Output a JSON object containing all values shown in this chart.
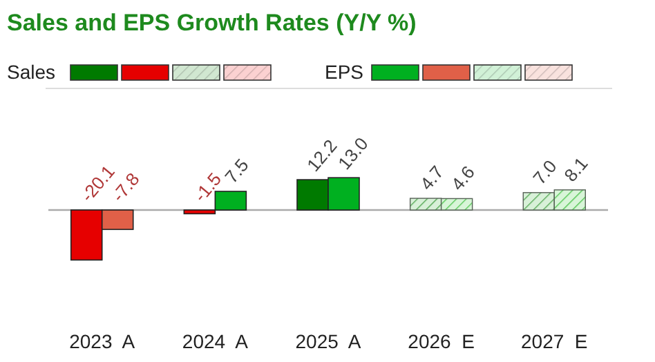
{
  "chart_data": {
    "type": "bar",
    "title": "Sales and EPS Growth Rates (Y/Y %)",
    "categories": [
      "2023  A",
      "2024  A",
      "2025  A",
      "2026  E",
      "2027  E"
    ],
    "series": [
      {
        "name": "Sales",
        "color": "#007a00",
        "colors": [
          "#e60000",
          "#e60000",
          "#007a00",
          "#d8f0d8",
          "#d8f0d8"
        ],
        "values": [
          -20.1,
          -1.5,
          12.2,
          4.7,
          7.0
        ],
        "value_labels": [
          "-20.1",
          "-1.5",
          "12.2",
          "4.7",
          "7.0"
        ]
      },
      {
        "name": "EPS",
        "color": "#00a800",
        "colors": [
          "#e06048",
          "#00b020",
          "#00b020",
          "#d8f5d8",
          "#d8f5d8"
        ],
        "values": [
          -7.8,
          7.5,
          13.0,
          4.6,
          8.1
        ],
        "value_labels": [
          "-7.8",
          "7.5",
          "13.0",
          "4.6",
          "8.1"
        ]
      }
    ],
    "data_labels": true,
    "legend": "top"
  }
}
